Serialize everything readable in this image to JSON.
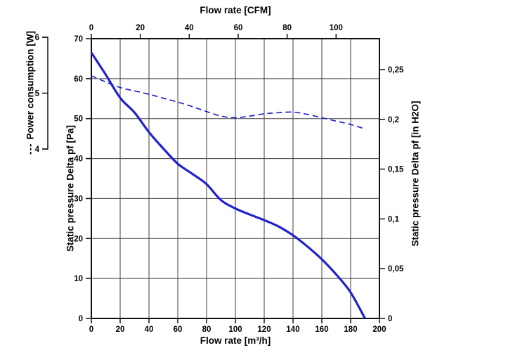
{
  "chart_data": {
    "type": "line",
    "grid": true,
    "axes": {
      "top": {
        "label": "Flow rate [CFM]",
        "ticks": [
          0,
          20,
          40,
          60,
          80,
          100
        ]
      },
      "bottom": {
        "label": "Flow rate [m³/h]",
        "range": [
          0,
          200
        ],
        "ticks": [
          0,
          20,
          40,
          60,
          80,
          100,
          120,
          140,
          160,
          180,
          200
        ]
      },
      "left": {
        "label": "Static pressure Delta pf [Pa]",
        "range": [
          0,
          70
        ],
        "ticks": [
          0,
          10,
          20,
          30,
          40,
          50,
          60,
          70
        ]
      },
      "right": {
        "label": "Static pressure Delta pf [in H2O]",
        "ticks": [
          0,
          0.05,
          0.1,
          0.15,
          0.2,
          0.25
        ],
        "tick_labels": [
          "0",
          "0,05",
          "0,1",
          "0,15",
          "0,2",
          "0,25"
        ]
      },
      "power": {
        "label": "Power consumption [W]",
        "legend_prefix": "---",
        "range": [
          4,
          6
        ],
        "ticks": [
          6,
          5,
          4
        ]
      }
    },
    "series": [
      {
        "name": "Static pressure Delta pf",
        "axis": "left",
        "style": "solid",
        "color": "#2222cc",
        "points": [
          [
            0,
            66.5
          ],
          [
            10,
            61.0
          ],
          [
            20,
            55.2
          ],
          [
            30,
            51.5
          ],
          [
            40,
            46.6
          ],
          [
            50,
            42.5
          ],
          [
            60,
            38.7
          ],
          [
            70,
            36.2
          ],
          [
            80,
            33.6
          ],
          [
            90,
            29.6
          ],
          [
            100,
            27.5
          ],
          [
            110,
            26.0
          ],
          [
            120,
            24.6
          ],
          [
            130,
            23.0
          ],
          [
            140,
            20.8
          ],
          [
            150,
            18.0
          ],
          [
            160,
            14.8
          ],
          [
            170,
            11.0
          ],
          [
            180,
            6.5
          ],
          [
            190,
            0
          ]
        ]
      },
      {
        "name": "Power consumption",
        "axis": "power",
        "style": "dashed",
        "color": "#2222cc",
        "points": [
          [
            0,
            5.31
          ],
          [
            10,
            5.2
          ],
          [
            20,
            5.1
          ],
          [
            30,
            5.04
          ],
          [
            40,
            4.98
          ],
          [
            50,
            4.91
          ],
          [
            60,
            4.84
          ],
          [
            70,
            4.76
          ],
          [
            80,
            4.67
          ],
          [
            90,
            4.59
          ],
          [
            100,
            4.56
          ],
          [
            110,
            4.59
          ],
          [
            120,
            4.63
          ],
          [
            130,
            4.65
          ],
          [
            140,
            4.66
          ],
          [
            150,
            4.62
          ],
          [
            160,
            4.56
          ],
          [
            170,
            4.5
          ],
          [
            180,
            4.44
          ],
          [
            190,
            4.36
          ]
        ]
      }
    ]
  }
}
